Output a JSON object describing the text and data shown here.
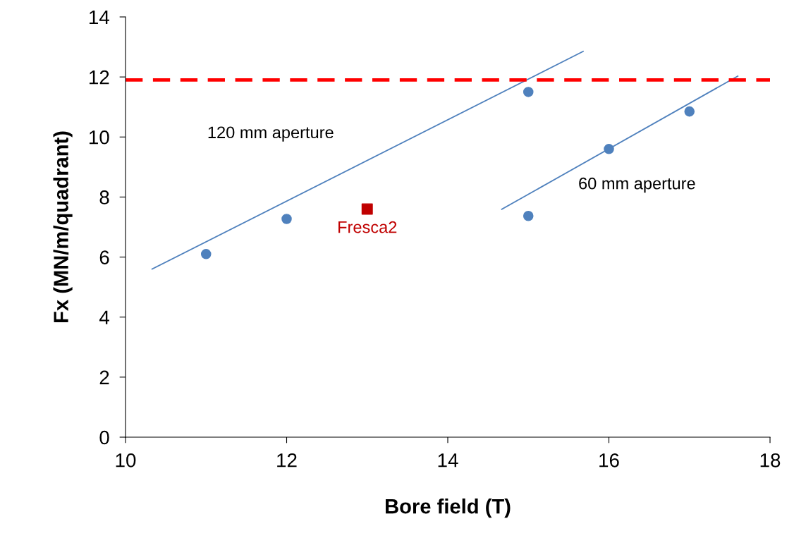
{
  "chart_data": {
    "type": "scatter",
    "xlabel": "Bore field (T)",
    "ylabel": "Fx (MN/m/quadrant)",
    "xlim": [
      10,
      18
    ],
    "xticks": [
      10,
      12,
      14,
      16,
      18
    ],
    "ylim": [
      0,
      14
    ],
    "yticks": [
      0,
      2,
      4,
      6,
      8,
      10,
      12,
      14
    ],
    "grid": false,
    "legend": false,
    "series": [
      {
        "type": "line",
        "name": "120 mm aperture",
        "color": "#4f81bd",
        "marker": "none",
        "x": [
          10.33,
          15.68
        ],
        "values": [
          5.6,
          12.85
        ]
      },
      {
        "type": "line",
        "name": "60 mm aperture",
        "color": "#4f81bd",
        "marker": "none",
        "x": [
          14.67,
          17.6
        ],
        "values": [
          7.59,
          12.03
        ]
      },
      {
        "color": "#4f81bd",
        "marker": "circle",
        "x": [
          11,
          12,
          15,
          15,
          16,
          17
        ],
        "values": [
          6.1,
          7.27,
          11.5,
          7.37,
          9.6,
          10.85
        ]
      },
      {
        "name": "Fresca2",
        "color": "#c00000",
        "marker": "square",
        "x": [
          13
        ],
        "values": [
          7.6
        ]
      }
    ],
    "ref_lines": [
      {
        "axis": "y",
        "value": 11.9,
        "color": "#ff0000",
        "line_style": "dashed"
      }
    ]
  }
}
